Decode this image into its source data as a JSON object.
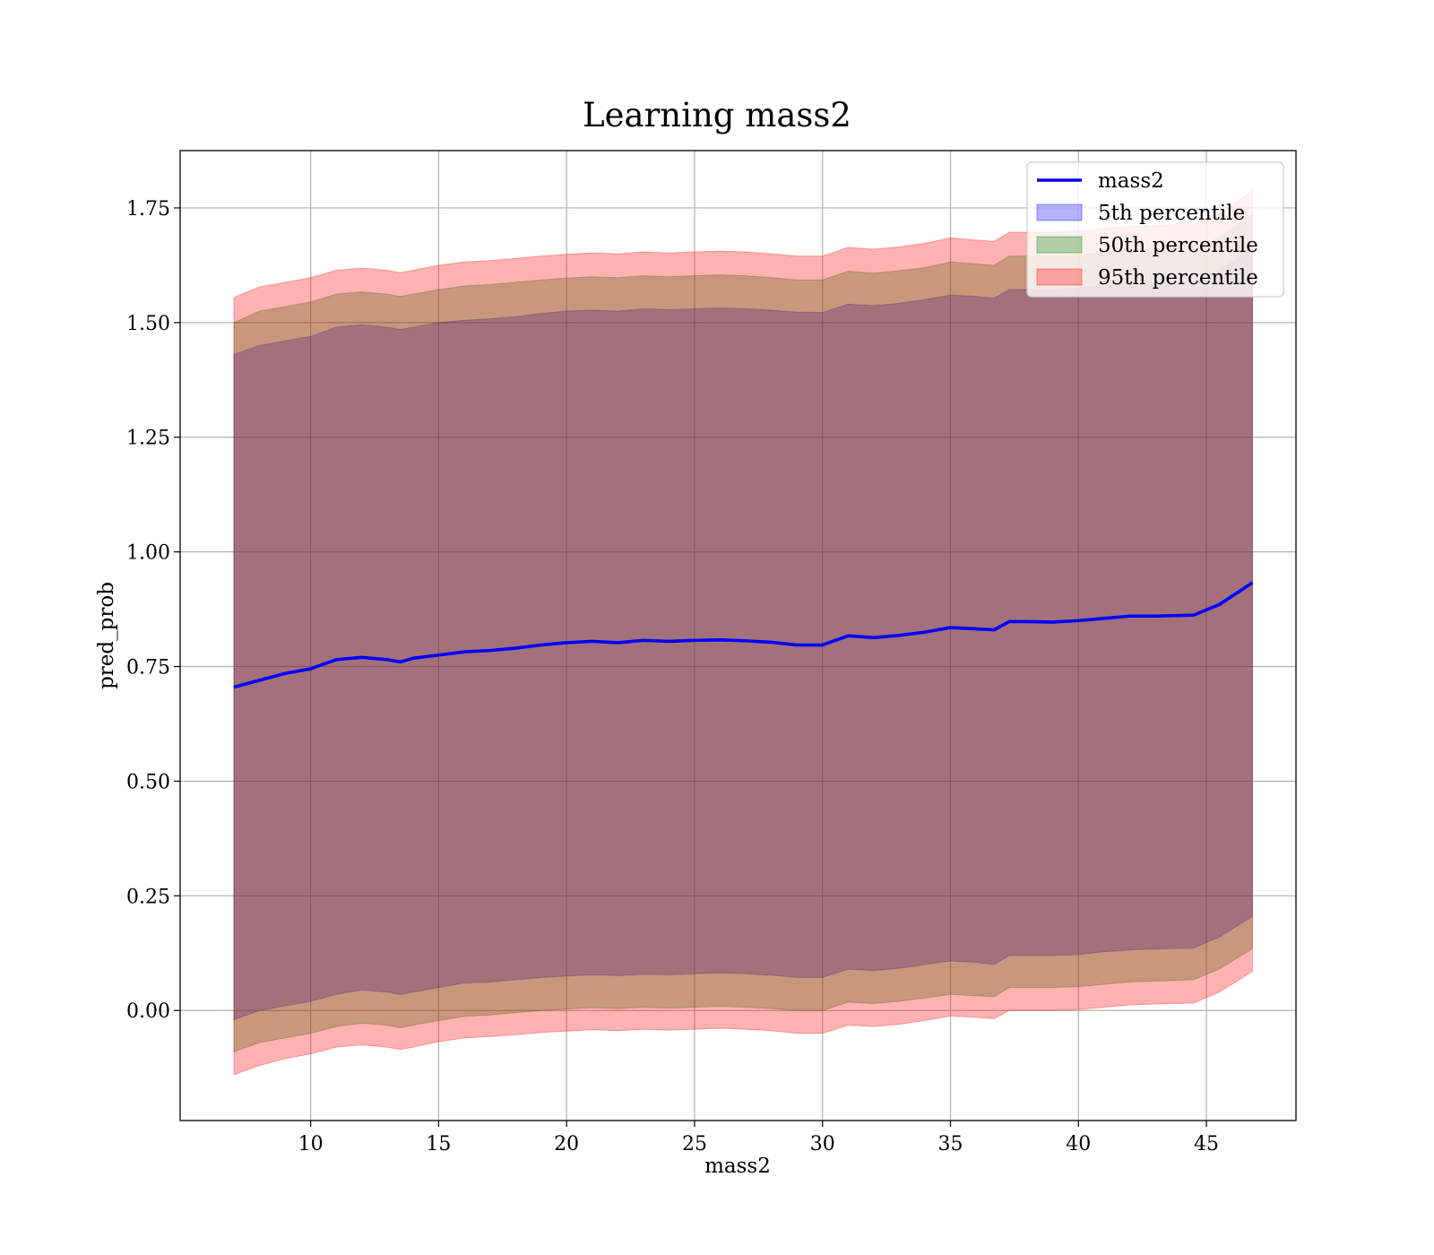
{
  "chart_data": {
    "type": "area",
    "title": "Learning mass2",
    "xlabel": "mass2",
    "ylabel": "pred_prob",
    "xlim": [
      4.9,
      48.5
    ],
    "ylim": [
      -0.24,
      1.875
    ],
    "xticks": [
      10,
      15,
      20,
      25,
      30,
      35,
      40,
      45
    ],
    "xtick_labels": [
      "10",
      "15",
      "20",
      "25",
      "30",
      "35",
      "40",
      "45"
    ],
    "yticks": [
      0.0,
      0.25,
      0.5,
      0.75,
      1.0,
      1.25,
      1.5,
      1.75
    ],
    "ytick_labels": [
      "0.00",
      "0.25",
      "0.50",
      "0.75",
      "1.00",
      "1.25",
      "1.50",
      "1.75"
    ],
    "grid": true,
    "legend_position": "top-right",
    "x": [
      7.0,
      8.0,
      9.0,
      10.0,
      11.0,
      12.0,
      13.0,
      13.5,
      14.0,
      15.0,
      16.0,
      17.0,
      18.0,
      19.0,
      20.0,
      21.0,
      22.0,
      23.0,
      24.0,
      25.0,
      26.0,
      27.0,
      28.0,
      29.0,
      30.0,
      31.0,
      32.0,
      33.0,
      34.0,
      35.0,
      36.0,
      36.7,
      37.3,
      38.0,
      39.0,
      40.0,
      41.0,
      42.0,
      43.0,
      44.5,
      45.5,
      46.8
    ],
    "series": [
      {
        "name": "mass2",
        "kind": "line",
        "color": "#0000ff",
        "values": [
          0.705,
          0.72,
          0.735,
          0.745,
          0.765,
          0.77,
          0.765,
          0.76,
          0.768,
          0.775,
          0.782,
          0.785,
          0.79,
          0.797,
          0.802,
          0.805,
          0.802,
          0.807,
          0.805,
          0.807,
          0.808,
          0.806,
          0.803,
          0.797,
          0.797,
          0.817,
          0.813,
          0.818,
          0.825,
          0.835,
          0.832,
          0.83,
          0.848,
          0.848,
          0.847,
          0.85,
          0.855,
          0.86,
          0.86,
          0.862,
          0.885,
          0.933
        ]
      },
      {
        "name": "5th percentile",
        "kind": "band",
        "color": "#0000ff",
        "opacity": 0.3,
        "lower": [
          -0.02,
          0.0,
          0.01,
          0.02,
          0.035,
          0.045,
          0.04,
          0.035,
          0.04,
          0.05,
          0.06,
          0.062,
          0.067,
          0.072,
          0.075,
          0.078,
          0.076,
          0.079,
          0.078,
          0.08,
          0.082,
          0.08,
          0.077,
          0.072,
          0.072,
          0.09,
          0.087,
          0.092,
          0.1,
          0.108,
          0.105,
          0.1,
          0.12,
          0.12,
          0.12,
          0.122,
          0.128,
          0.132,
          0.134,
          0.136,
          0.16,
          0.205
        ],
        "upper": [
          1.43,
          1.45,
          1.46,
          1.47,
          1.49,
          1.495,
          1.49,
          1.485,
          1.49,
          1.5,
          1.505,
          1.508,
          1.513,
          1.52,
          1.525,
          1.527,
          1.525,
          1.53,
          1.528,
          1.53,
          1.532,
          1.53,
          1.527,
          1.523,
          1.522,
          1.54,
          1.537,
          1.542,
          1.55,
          1.56,
          1.557,
          1.553,
          1.572,
          1.572,
          1.572,
          1.575,
          1.58,
          1.585,
          1.587,
          1.59,
          1.615,
          1.66
        ]
      },
      {
        "name": "50th percentile",
        "kind": "band",
        "color": "#008000",
        "opacity": 0.3,
        "lower": [
          -0.09,
          -0.07,
          -0.06,
          -0.05,
          -0.035,
          -0.028,
          -0.032,
          -0.038,
          -0.032,
          -0.022,
          -0.013,
          -0.01,
          -0.005,
          0.0,
          0.003,
          0.006,
          0.004,
          0.007,
          0.005,
          0.007,
          0.009,
          0.007,
          0.004,
          0.0,
          0.0,
          0.018,
          0.015,
          0.02,
          0.027,
          0.035,
          0.032,
          0.03,
          0.05,
          0.05,
          0.05,
          0.052,
          0.057,
          0.062,
          0.064,
          0.067,
          0.09,
          0.135
        ],
        "upper": [
          1.5,
          1.525,
          1.535,
          1.545,
          1.562,
          1.567,
          1.562,
          1.557,
          1.562,
          1.572,
          1.58,
          1.583,
          1.588,
          1.593,
          1.597,
          1.6,
          1.598,
          1.602,
          1.6,
          1.602,
          1.604,
          1.602,
          1.598,
          1.593,
          1.593,
          1.612,
          1.608,
          1.613,
          1.62,
          1.632,
          1.628,
          1.625,
          1.645,
          1.645,
          1.645,
          1.648,
          1.653,
          1.658,
          1.66,
          1.663,
          1.685,
          1.735
        ]
      },
      {
        "name": "95th percentile",
        "kind": "band",
        "color": "#ff0000",
        "opacity": 0.3,
        "lower": [
          -0.14,
          -0.12,
          -0.105,
          -0.095,
          -0.08,
          -0.075,
          -0.08,
          -0.085,
          -0.08,
          -0.068,
          -0.06,
          -0.057,
          -0.053,
          -0.048,
          -0.045,
          -0.042,
          -0.044,
          -0.041,
          -0.043,
          -0.041,
          -0.039,
          -0.041,
          -0.044,
          -0.05,
          -0.05,
          -0.032,
          -0.035,
          -0.03,
          -0.022,
          -0.012,
          -0.015,
          -0.018,
          0.0,
          0.0,
          0.0,
          0.002,
          0.007,
          0.012,
          0.014,
          0.016,
          0.04,
          0.085
        ],
        "upper": [
          1.555,
          1.578,
          1.588,
          1.598,
          1.614,
          1.619,
          1.614,
          1.609,
          1.614,
          1.625,
          1.632,
          1.635,
          1.64,
          1.645,
          1.649,
          1.652,
          1.65,
          1.654,
          1.652,
          1.654,
          1.656,
          1.654,
          1.65,
          1.645,
          1.645,
          1.664,
          1.66,
          1.665,
          1.673,
          1.685,
          1.68,
          1.677,
          1.697,
          1.697,
          1.697,
          1.7,
          1.705,
          1.71,
          1.712,
          1.715,
          1.737,
          1.787
        ]
      }
    ]
  }
}
